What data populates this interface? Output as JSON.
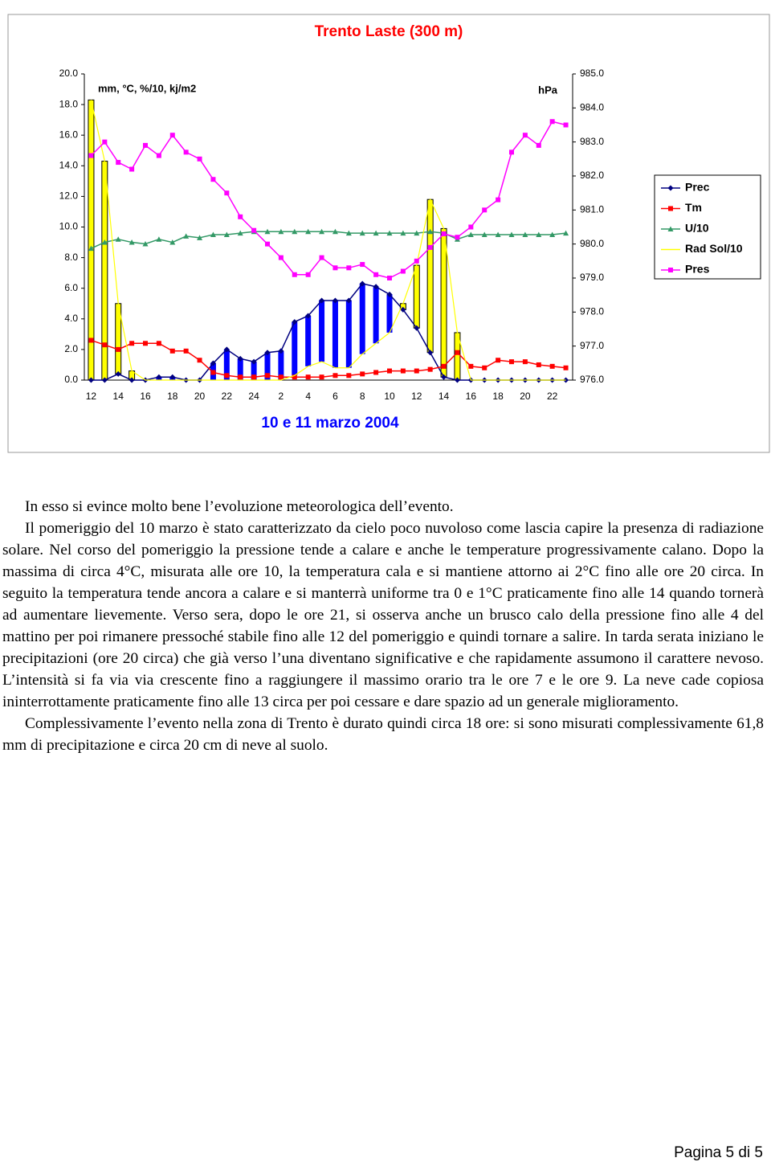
{
  "chart_data": {
    "type": "line",
    "title": "Trento Laste (300 m)",
    "x_label": "10 e 11 marzo 2004",
    "y_label": "mm, °C, %/10, kj/m2",
    "y2_label": "hPa",
    "categories": [
      "12",
      null,
      "14",
      null,
      "16",
      null,
      "18",
      null,
      "20",
      null,
      "22",
      null,
      "24",
      null,
      "2",
      null,
      "4",
      null,
      "6",
      null,
      "8",
      null,
      "10",
      null,
      "12",
      null,
      "14",
      null,
      "16",
      null,
      "18",
      null,
      "20",
      null,
      "22",
      null
    ],
    "ylim": [
      0,
      20
    ],
    "yticks": [
      {
        "value": 0,
        "label": "0.0"
      },
      {
        "value": 2,
        "label": "2.0"
      },
      {
        "value": 4,
        "label": "4.0"
      },
      {
        "value": 6,
        "label": "6.0"
      },
      {
        "value": 8,
        "label": "8.0"
      },
      {
        "value": 10,
        "label": "10.0"
      },
      {
        "value": 12,
        "label": "12.0"
      },
      {
        "value": 14,
        "label": "14.0"
      },
      {
        "value": 16,
        "label": "16.0"
      },
      {
        "value": 18,
        "label": "18.0"
      },
      {
        "value": 20,
        "label": "20.0"
      }
    ],
    "y2lim": [
      976,
      985
    ],
    "y2ticks": [
      {
        "value": 976,
        "label": "976.0"
      },
      {
        "value": 977,
        "label": "977.0"
      },
      {
        "value": 978,
        "label": "978.0"
      },
      {
        "value": 979,
        "label": "979.0"
      },
      {
        "value": 980,
        "label": "980.0"
      },
      {
        "value": 981,
        "label": "981.0"
      },
      {
        "value": 982,
        "label": "982.0"
      },
      {
        "value": 983,
        "label": "983.0"
      },
      {
        "value": 984,
        "label": "984.0"
      },
      {
        "value": 985,
        "label": "985.0"
      }
    ],
    "grid": false,
    "legend": "right",
    "up_down_bars": {
      "series": [
        0,
        3
      ],
      "up_color": "#ffff00",
      "down_color": "#0000ff"
    },
    "series": [
      {
        "name": "Prec",
        "color": "#000080",
        "marker": "diamond",
        "values": [
          0,
          0,
          0.4,
          0,
          0,
          0.2,
          0.2,
          0,
          0,
          1.1,
          2.0,
          1.4,
          1.2,
          1.8,
          1.9,
          3.8,
          4.2,
          5.2,
          5.2,
          5.2,
          6.3,
          6.1,
          5.6,
          4.6,
          3.4,
          1.8,
          0.2,
          0,
          0,
          0,
          0,
          0,
          0,
          0,
          0,
          0
        ]
      },
      {
        "name": "Tm",
        "color": "#ff0000",
        "marker": "square",
        "values": [
          2.6,
          2.3,
          2.0,
          2.4,
          2.4,
          2.4,
          1.9,
          1.9,
          1.3,
          0.5,
          0.3,
          0.2,
          0.2,
          0.3,
          0.2,
          0.2,
          0.2,
          0.2,
          0.3,
          0.3,
          0.4,
          0.5,
          0.6,
          0.6,
          0.6,
          0.7,
          0.9,
          1.8,
          0.9,
          0.8,
          1.3,
          1.2,
          1.2,
          1.0,
          0.9,
          0.8
        ]
      },
      {
        "name": "U/10",
        "color": "#339966",
        "marker": "triangle",
        "values": [
          8.6,
          9.0,
          9.2,
          9.0,
          8.9,
          9.2,
          9.0,
          9.4,
          9.3,
          9.5,
          9.5,
          9.6,
          9.7,
          9.7,
          9.7,
          9.7,
          9.7,
          9.7,
          9.7,
          9.6,
          9.6,
          9.6,
          9.6,
          9.6,
          9.6,
          9.7,
          9.6,
          9.2,
          9.5,
          9.5,
          9.5,
          9.5,
          9.5,
          9.5,
          9.5,
          9.6
        ]
      },
      {
        "name": "Rad Sol/10",
        "color": "#ffff00",
        "marker": "none",
        "values": [
          18.3,
          14.3,
          5.0,
          0.6,
          0,
          0,
          0,
          0,
          0,
          0,
          0,
          0,
          0,
          0,
          0,
          0.3,
          0.9,
          1.2,
          0.8,
          0.8,
          1.7,
          2.4,
          3.1,
          5.0,
          7.5,
          11.8,
          9.9,
          3.1,
          0,
          0,
          0,
          0,
          0,
          0,
          0,
          0
        ]
      },
      {
        "name": "Pres",
        "color": "#ff00ff",
        "marker": "square",
        "axis": "y2",
        "values": [
          982.6,
          983.0,
          982.4,
          982.2,
          982.9,
          982.6,
          983.2,
          982.7,
          982.5,
          981.9,
          981.5,
          980.8,
          980.4,
          980.0,
          979.6,
          979.1,
          979.1,
          979.6,
          979.3,
          979.3,
          979.4,
          979.1,
          979.0,
          979.2,
          979.5,
          979.9,
          980.3,
          980.2,
          980.5,
          981.0,
          981.3,
          982.7,
          983.2,
          982.9,
          983.6,
          983.5
        ]
      }
    ]
  },
  "paragraphs": [
    "In esso si evince molto bene l’evoluzione meteorologica dell’evento.",
    "Il pomeriggio del 10 marzo è stato caratterizzato da cielo poco nuvoloso come lascia capire la presenza di radiazione solare. Nel corso del pomeriggio la pressione tende a calare e anche le temperature progressivamente calano. Dopo la massima di circa 4°C, misurata alle ore 10, la temperatura cala e si mantiene attorno ai 2°C fino alle ore 20 circa. In seguito la temperatura tende ancora a calare e si manterrà uniforme tra 0 e 1°C praticamente fino alle 14 quando tornerà ad aumentare lievemente. Verso sera, dopo le ore 21, si osserva anche un brusco calo della pressione fino alle 4 del mattino per poi rimanere pressoché stabile fino alle 12 del pomeriggio e quindi tornare a salire. In tarda serata iniziano le precipitazioni (ore 20 circa) che già verso l’una diventano significative e che rapidamente assumono il carattere nevoso. L’intensità si fa via via crescente fino a raggiungere il massimo orario tra le ore 7 e le ore 9. La neve cade copiosa ininterrottamente praticamente fino alle 13 circa per poi cessare e dare spazio ad un generale miglioramento.",
    "Complessivamente l’evento nella zona di Trento è durato quindi circa 18 ore: si sono misurati complessivamente 61,8 mm di precipitazione e circa 20 cm di neve al suolo."
  ],
  "footer": "Pagina 5 di 5"
}
